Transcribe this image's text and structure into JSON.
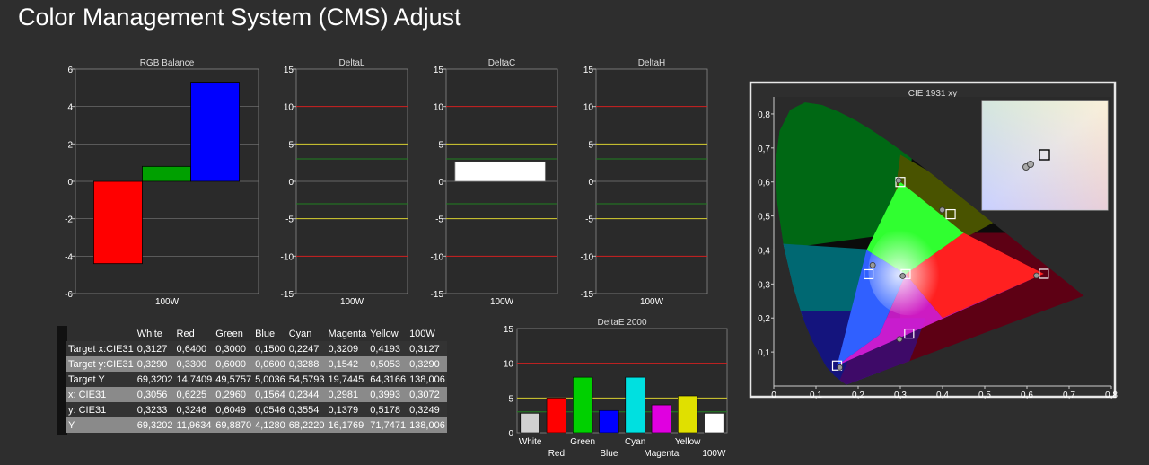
{
  "title": "Color Management System (CMS) Adjust",
  "chart_data": [
    {
      "type": "bar",
      "title": "RGB Balance",
      "categories": [
        "100W"
      ],
      "series": [
        {
          "name": "Red",
          "color": "#ff0000",
          "values": [
            -4.4
          ]
        },
        {
          "name": "Green",
          "color": "#00a000",
          "values": [
            0.8
          ]
        },
        {
          "name": "Blue",
          "color": "#0000ff",
          "values": [
            5.3
          ]
        }
      ],
      "ylim": [
        -6,
        6
      ],
      "yticks": [
        "6",
        "4",
        "2",
        "0",
        "-2",
        "-4",
        "-6"
      ],
      "xlabel": "",
      "ylabel": ""
    },
    {
      "type": "bar",
      "title": "DeltaL",
      "categories": [
        "100W"
      ],
      "values": [
        0
      ],
      "ylim": [
        -15,
        15
      ],
      "yticks": [
        "15",
        "10",
        "5",
        "0",
        "-5",
        "-10",
        "-15"
      ],
      "xlabel": "",
      "ylabel": ""
    },
    {
      "type": "bar",
      "title": "DeltaC",
      "categories": [
        "100W"
      ],
      "values": [
        2.6
      ],
      "ylim": [
        -15,
        15
      ],
      "yticks": [
        "15",
        "10",
        "5",
        "0",
        "-5",
        "-10",
        "-15"
      ],
      "xlabel": "",
      "ylabel": ""
    },
    {
      "type": "bar",
      "title": "DeltaH",
      "categories": [
        "100W"
      ],
      "values": [
        0
      ],
      "ylim": [
        -15,
        15
      ],
      "yticks": [
        "15",
        "10",
        "5",
        "0",
        "-5",
        "-10",
        "-15"
      ],
      "xlabel": "",
      "ylabel": ""
    },
    {
      "type": "bar",
      "title": "DeltaE 2000",
      "categories": [
        "White",
        "Red",
        "Green",
        "Blue",
        "Cyan",
        "Magenta",
        "Yellow",
        "100W"
      ],
      "values": [
        2.8,
        5.0,
        8.0,
        3.2,
        8.0,
        4.0,
        5.3,
        2.8
      ],
      "colors": [
        "#d0d0d0",
        "#ff0000",
        "#00d000",
        "#0000ff",
        "#00e0e0",
        "#e000e0",
        "#e0e000",
        "#ffffff"
      ],
      "ylim": [
        0,
        15
      ],
      "yticks": [
        "15",
        "10",
        "5",
        "0"
      ],
      "xlabel": "",
      "ylabel": ""
    },
    {
      "type": "scatter",
      "title": "CIE 1931 xy",
      "xlim": [
        0,
        0.8
      ],
      "ylim": [
        0,
        0.85
      ],
      "xticks": [
        "0",
        "0,1",
        "0,2",
        "0,3",
        "0,4",
        "0,5",
        "0,6",
        "0,7",
        "0,8"
      ],
      "yticks": [
        "0,1",
        "0,2",
        "0,3",
        "0,4",
        "0,5",
        "0,6",
        "0,7",
        "0,8"
      ],
      "targets": [
        {
          "name": "White",
          "x": 0.3127,
          "y": 0.329
        },
        {
          "name": "Red",
          "x": 0.64,
          "y": 0.33
        },
        {
          "name": "Green",
          "x": 0.3,
          "y": 0.6
        },
        {
          "name": "Blue",
          "x": 0.15,
          "y": 0.06
        },
        {
          "name": "Cyan",
          "x": 0.2247,
          "y": 0.3288
        },
        {
          "name": "Magenta",
          "x": 0.3209,
          "y": 0.1542
        },
        {
          "name": "Yellow",
          "x": 0.4193,
          "y": 0.5053
        }
      ],
      "measured": [
        {
          "name": "White",
          "x": 0.3056,
          "y": 0.3233
        },
        {
          "name": "Red",
          "x": 0.6225,
          "y": 0.3246
        },
        {
          "name": "Green",
          "x": 0.296,
          "y": 0.6049
        },
        {
          "name": "Blue",
          "x": 0.1564,
          "y": 0.0546
        },
        {
          "name": "Cyan",
          "x": 0.2344,
          "y": 0.3554
        },
        {
          "name": "Magenta",
          "x": 0.2981,
          "y": 0.1379
        },
        {
          "name": "Yellow",
          "x": 0.3993,
          "y": 0.5178
        }
      ],
      "gamut_triangle": [
        [
          0.64,
          0.33
        ],
        [
          0.3,
          0.6
        ],
        [
          0.15,
          0.06
        ]
      ],
      "inset_target": {
        "x": 0.3127,
        "y": 0.329
      },
      "inset_measured": [
        {
          "x": 0.3056,
          "y": 0.3233
        },
        {
          "x": 0.3072,
          "y": 0.3249
        }
      ]
    }
  ],
  "table": {
    "headers": [
      "",
      "White",
      "Red",
      "Green",
      "Blue",
      "Cyan",
      "Magenta",
      "Yellow",
      "100W"
    ],
    "rows": [
      [
        "Target x:CIE31",
        "0,3127",
        "0,6400",
        "0,3000",
        "0,1500",
        "0,2247",
        "0,3209",
        "0,4193",
        "0,3127"
      ],
      [
        "Target y:CIE31",
        "0,3290",
        "0,3300",
        "0,6000",
        "0,0600",
        "0,3288",
        "0,1542",
        "0,5053",
        "0,3290"
      ],
      [
        "Target Y",
        "69,3202",
        "14,7409",
        "49,5757",
        "5,0036",
        "54,5793",
        "19,7445",
        "64,3166",
        "138,006"
      ],
      [
        "x: CIE31",
        "0,3056",
        "0,6225",
        "0,2960",
        "0,1564",
        "0,2344",
        "0,2981",
        "0,3993",
        "0,3072"
      ],
      [
        "y: CIE31",
        "0,3233",
        "0,3246",
        "0,6049",
        "0,0546",
        "0,3554",
        "0,1379",
        "0,5178",
        "0,3249"
      ],
      [
        "Y",
        "69,3202",
        "11,9634",
        "69,8870",
        "4,1280",
        "68,2220",
        "16,1769",
        "71,7471",
        "138,006"
      ]
    ]
  }
}
